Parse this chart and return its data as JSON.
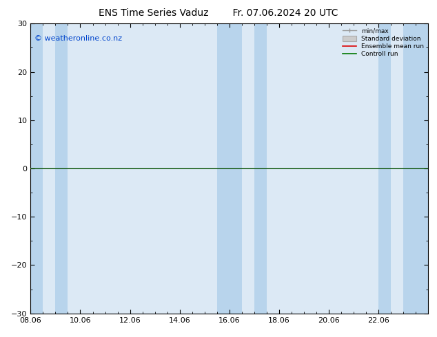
{
  "title": "ENS Time Series Vaduz",
  "title_right": "Fr. 07.06.2024 20 UTC",
  "watermark": "© weatheronline.co.nz",
  "ylim": [
    -30,
    30
  ],
  "yticks": [
    -30,
    -20,
    -10,
    0,
    10,
    20,
    30
  ],
  "xlabel_dates": [
    "08.06",
    "10.06",
    "12.06",
    "14.06",
    "16.06",
    "18.06",
    "20.06",
    "22.06"
  ],
  "x_tick_positions": [
    0,
    2,
    4,
    6,
    8,
    10,
    12,
    14
  ],
  "x_min": 0,
  "x_max": 16,
  "background_color": "#ffffff",
  "plot_bg_color": "#dce9f5",
  "band_color": "#b8d4ec",
  "zero_line_color": "#1a5f1a",
  "legend_minmax_color": "#999999",
  "legend_std_facecolor": "#cccccc",
  "legend_std_edgecolor": "#aaaaaa",
  "legend_mean_color": "#dd0000",
  "legend_control_color": "#007700",
  "title_fontsize": 10,
  "tick_fontsize": 8,
  "watermark_fontsize": 8,
  "watermark_color": "#0044cc",
  "shaded_bands": [
    [
      0.0,
      0.5
    ],
    [
      1.0,
      1.5
    ],
    [
      7.5,
      8.5
    ],
    [
      9.0,
      9.5
    ],
    [
      14.0,
      14.5
    ],
    [
      15.0,
      16.0
    ]
  ],
  "minor_x_step": 0.5,
  "minor_y_step": 5
}
